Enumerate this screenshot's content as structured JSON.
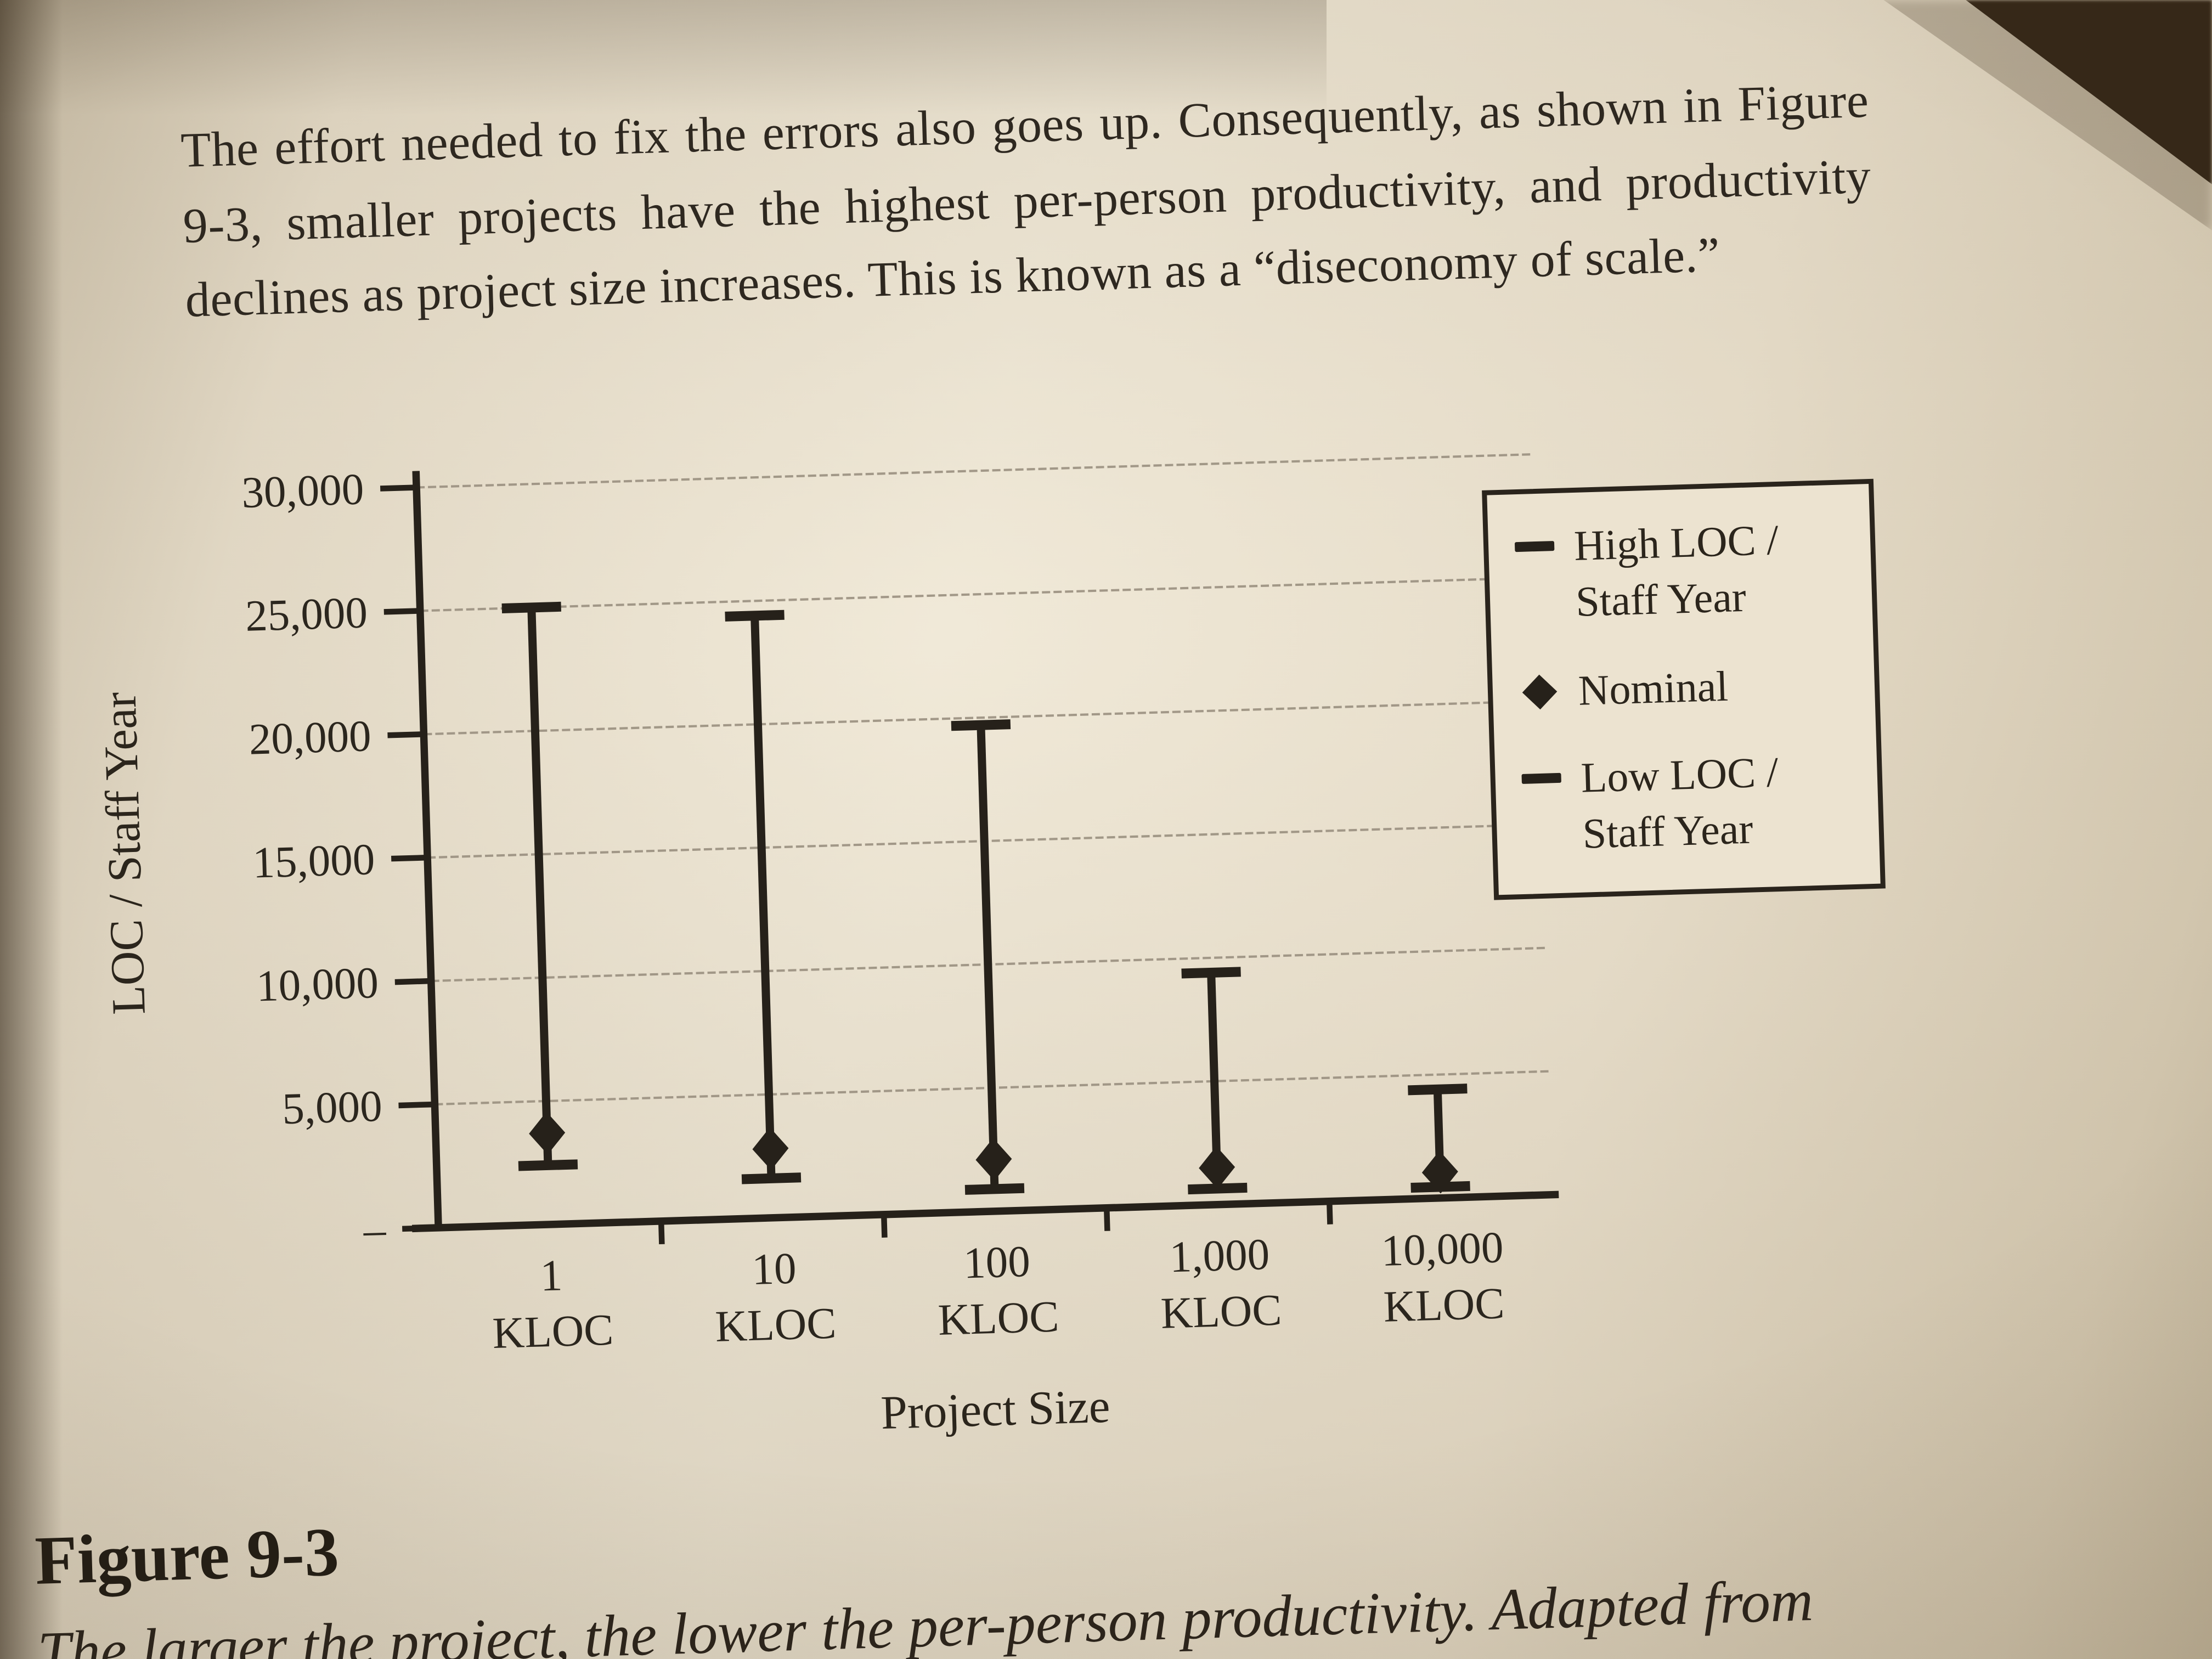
{
  "colors": {
    "ink": "#26211a",
    "grid": "#9a9080",
    "paper": "#ece3d0"
  },
  "page": {
    "paragraph": "The effort needed to fix the errors also goes up. Consequently, as shown in Figure 9-3, smaller projects have the highest per-person productivity, and productivity declines as project size increases. This is known as a “diseconomy of scale.”",
    "figure_label": "Figure 9-3",
    "figure_caption": "The larger the project, the lower the per-person productivity. Adapted from"
  },
  "chart_data": {
    "type": "range-bar",
    "title": "",
    "xlabel": "Project Size",
    "ylabel": "LOC / Staff Year",
    "categories": [
      "1 KLOC",
      "10 KLOC",
      "100 KLOC",
      "1,000 KLOC",
      "10,000 KLOC"
    ],
    "ylim": [
      0,
      30000
    ],
    "ytick_values": [
      0,
      5000,
      10000,
      15000,
      20000,
      25000,
      30000
    ],
    "ytick_labels": [
      "–",
      "5,000",
      "10,000",
      "15,000",
      "20,000",
      "25,000",
      "30,000"
    ],
    "grid": true,
    "legend_position": "upper right",
    "series": [
      {
        "name": "High LOC / Staff Year",
        "marker": "dash",
        "values": [
          25000,
          24400,
          19700,
          9400,
          4400
        ]
      },
      {
        "name": "Nominal",
        "marker": "diamond",
        "values": [
          3700,
          2800,
          2100,
          1500,
          1050
        ]
      },
      {
        "name": "Low LOC / Staff Year",
        "marker": "dash",
        "values": [
          2400,
          1600,
          900,
          650,
          450
        ]
      }
    ]
  }
}
